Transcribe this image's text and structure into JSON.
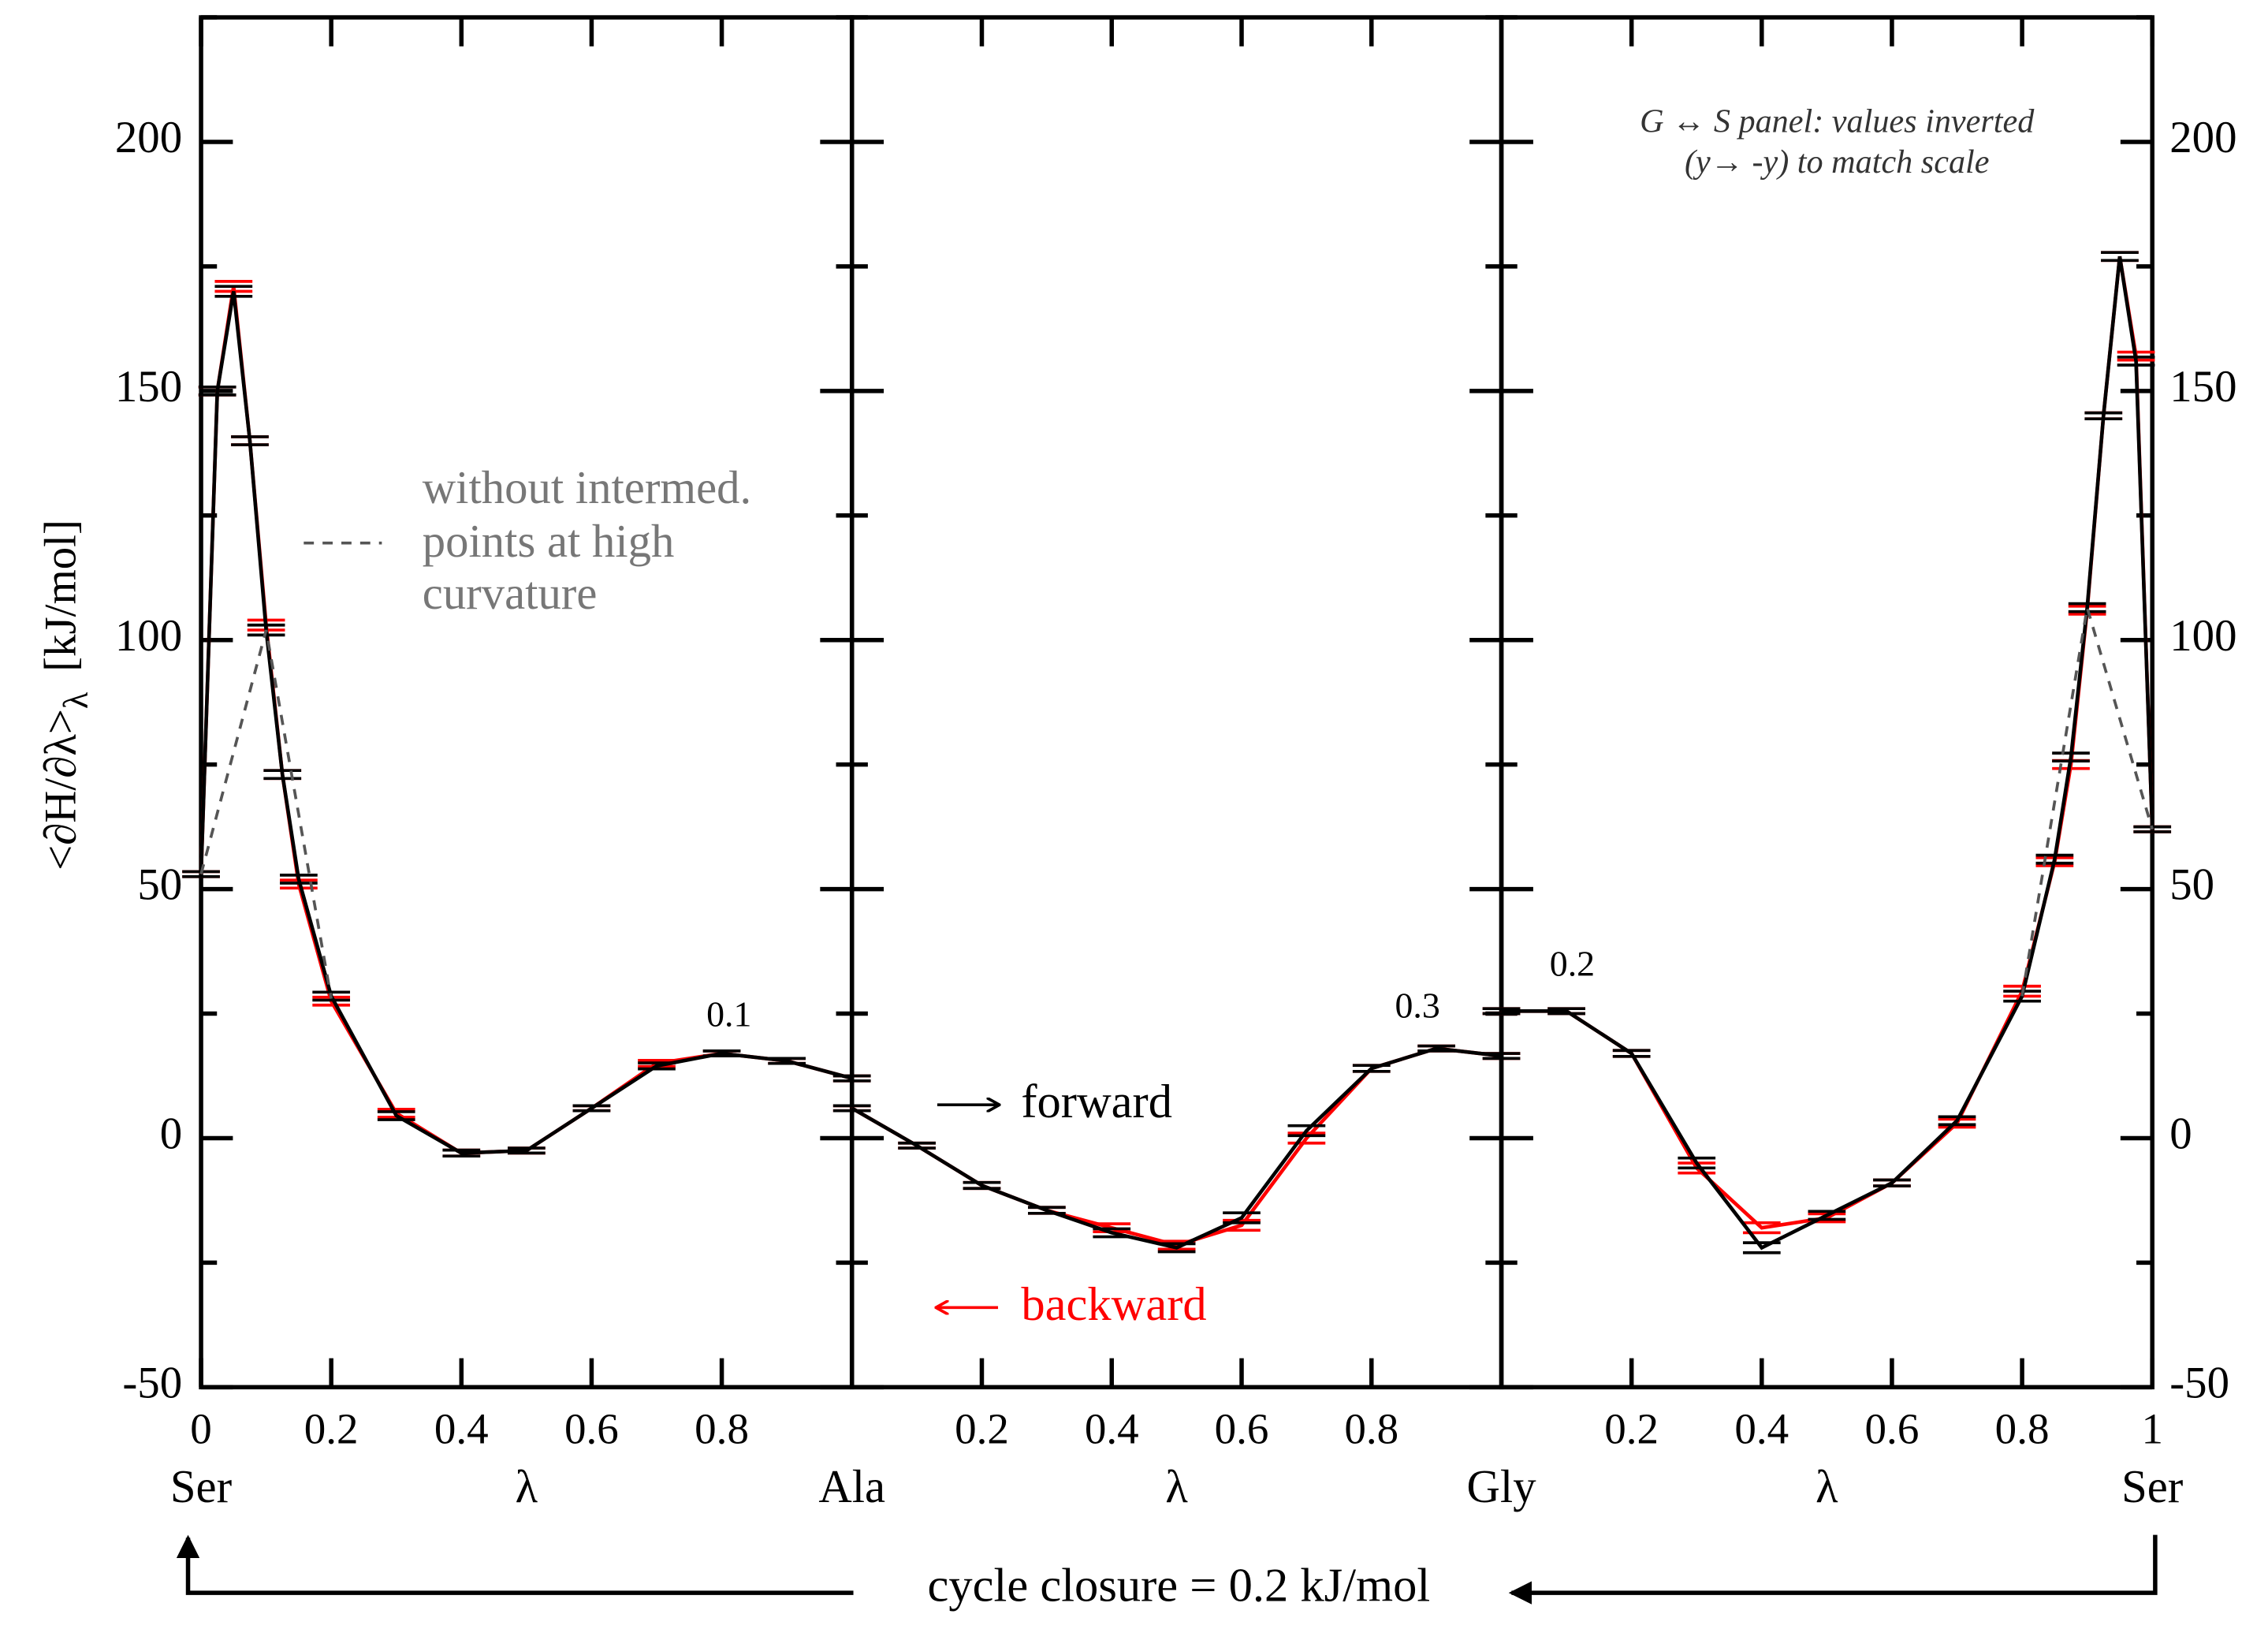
{
  "figure": {
    "ylabel": "<∂H/∂λ>",
    "ylabel_sub": "λ",
    "ylabel_unit": "[kJ/mol]",
    "ylim": [
      -50,
      225
    ],
    "yticks": [
      -50,
      0,
      50,
      100,
      150,
      200
    ],
    "yminorticks": [
      -25,
      25,
      75,
      125,
      175,
      225
    ],
    "legend": [
      {
        "name": "forward",
        "color": "#000000"
      },
      {
        "name": "backward",
        "color": "#ff0000"
      }
    ],
    "dashed_note": [
      "without intermed.",
      "points at high",
      "curvature"
    ],
    "panel_note": [
      "G ↔ S panel: values inverted",
      "(y→ -y) to match scale"
    ],
    "endpoints": [
      "Ser",
      "Ala",
      "Gly",
      "Ser"
    ],
    "cycle_closure": "cycle closure = 0.2 kJ/mol"
  },
  "chart_data": [
    {
      "type": "line",
      "xlabel": "λ",
      "note": "0.1",
      "xlim": [
        0,
        1
      ],
      "xticks": [
        0,
        0.2,
        0.4,
        0.6,
        0.8
      ],
      "x": [
        0,
        0.025,
        0.05,
        0.075,
        0.1,
        0.125,
        0.15,
        0.2,
        0.3,
        0.4,
        0.5,
        0.6,
        0.7,
        0.8,
        0.9,
        1
      ],
      "series": [
        {
          "color": "#ff0000",
          "values": [
            53,
            150,
            171,
            140,
            103,
            73,
            51,
            27.5,
            5,
            -3,
            -2.5,
            6,
            15,
            17,
            15.5,
            12
          ],
          "errors": [
            0.5,
            0.8,
            1,
            0.8,
            1,
            0.8,
            0.8,
            0.8,
            0.8,
            0.6,
            0.5,
            0.5,
            0.6,
            0.5,
            0.5,
            0.5
          ]
        },
        {
          "color": "#000000",
          "values": [
            53,
            150,
            170,
            140,
            102,
            73,
            52,
            28.5,
            4.5,
            -3,
            -2.5,
            6,
            14.5,
            17,
            15.5,
            12
          ],
          "errors": [
            0.5,
            0.8,
            1,
            0.8,
            1,
            0.8,
            0.8,
            0.8,
            0.8,
            0.6,
            0.5,
            0.5,
            0.6,
            0.5,
            0.5,
            0.5
          ]
        },
        {
          "color": "#555555",
          "dash": true,
          "x": [
            0,
            0.1,
            0.2
          ],
          "values": [
            53,
            102,
            28
          ]
        }
      ]
    },
    {
      "type": "line",
      "xlabel": "λ",
      "note": "0.3",
      "xlim": [
        0,
        1
      ],
      "xticks": [
        0.2,
        0.4,
        0.6,
        0.8
      ],
      "x": [
        0,
        0.1,
        0.2,
        0.3,
        0.4,
        0.5,
        0.6,
        0.7,
        0.8,
        0.9,
        1
      ],
      "series": [
        {
          "color": "#ff0000",
          "values": [
            6,
            -1.5,
            -9.5,
            -14.5,
            -18,
            -21.5,
            -17.5,
            0,
            14,
            18,
            16.5
          ],
          "errors": [
            0.5,
            0.5,
            0.6,
            0.6,
            0.8,
            0.8,
            1,
            1,
            0.6,
            0.5,
            0.5
          ]
        },
        {
          "color": "#000000",
          "values": [
            6,
            -1.5,
            -9.5,
            -14.5,
            -19,
            -22,
            -16,
            1.5,
            14,
            18,
            16.5
          ],
          "errors": [
            0.5,
            0.5,
            0.6,
            0.6,
            0.8,
            0.8,
            1,
            1,
            0.6,
            0.5,
            0.5
          ]
        }
      ]
    },
    {
      "type": "line",
      "xlabel": "λ",
      "note": "0.2",
      "xlim": [
        0,
        1
      ],
      "xticks": [
        0.2,
        0.4,
        0.6,
        0.8,
        1
      ],
      "x": [
        0,
        0.1,
        0.2,
        0.3,
        0.4,
        0.5,
        0.6,
        0.7,
        0.8,
        0.85,
        0.875,
        0.9,
        0.925,
        0.95,
        0.975,
        1
      ],
      "series": [
        {
          "color": "#ff0000",
          "values": [
            25.5,
            25.5,
            17,
            -6,
            -18,
            -16,
            -9,
            3,
            29.5,
            55.5,
            75,
            106,
            145,
            177,
            157,
            62
          ],
          "errors": [
            0.5,
            0.5,
            0.6,
            1,
            1,
            0.8,
            0.6,
            0.8,
            1,
            0.8,
            0.8,
            0.8,
            0.6,
            0.8,
            0.8,
            0.5
          ]
        },
        {
          "color": "#000000",
          "values": [
            25.5,
            25.5,
            17,
            -5,
            -22,
            -15.5,
            -9,
            3.5,
            28.5,
            56,
            76.5,
            106.5,
            145,
            177,
            156,
            62
          ],
          "errors": [
            0.5,
            0.5,
            0.6,
            1,
            1,
            0.8,
            0.6,
            0.8,
            1,
            0.8,
            0.8,
            0.8,
            0.6,
            0.8,
            0.8,
            0.5
          ]
        },
        {
          "color": "#555555",
          "dash": true,
          "x": [
            0.8,
            0.9,
            1
          ],
          "values": [
            28.5,
            106.5,
            62
          ]
        }
      ]
    }
  ]
}
